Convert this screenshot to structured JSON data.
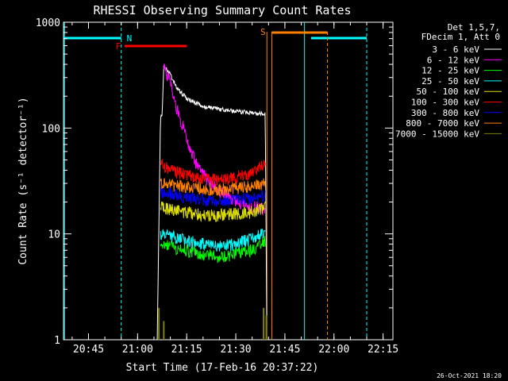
{
  "chart_data": {
    "type": "line",
    "title": "RHESSI Observing Summary Count Rates",
    "xlabel": "Start Time (17-Feb-16 20:37:22)",
    "ylabel": "Count Rate (s⁻¹ detector⁻¹)",
    "y_scale": "log",
    "ylim": [
      1,
      1000
    ],
    "xlim": [
      "20:37:22",
      "22:18:00"
    ],
    "x_ticks": [
      "20:45",
      "21:00",
      "21:15",
      "21:30",
      "21:45",
      "22:00",
      "22:15"
    ],
    "y_ticks": [
      "1",
      "10",
      "100",
      "1000"
    ],
    "legend": {
      "position": "top-right",
      "header": [
        "Det 1,5,7,",
        "FDecim 1, Att 0"
      ],
      "entries": [
        {
          "label": "3 - 6 keV",
          "color": "#ffffff"
        },
        {
          "label": "6 - 12 keV",
          "color": "#ff00ff"
        },
        {
          "label": "12 - 25 keV",
          "color": "#00ff00"
        },
        {
          "label": "25 - 50 keV",
          "color": "#00ffff"
        },
        {
          "label": "50 - 100 keV",
          "color": "#dddd00"
        },
        {
          "label": "100 - 300 keV",
          "color": "#ff0000"
        },
        {
          "label": "300 - 800 keV",
          "color": "#0000ff"
        },
        {
          "label": "800 - 7000 keV",
          "color": "#ff8000"
        },
        {
          "label": "7000 - 15000 keV",
          "color": "#808000"
        }
      ]
    },
    "series": [
      {
        "name": "3 - 6 keV",
        "color": "#ffffff",
        "x": [
          "21:06",
          "21:07",
          "21:07:30",
          "21:08",
          "21:10",
          "21:12",
          "21:15",
          "21:20",
          "21:25",
          "21:30",
          "21:34",
          "21:39",
          "21:39:30"
        ],
        "y": [
          1,
          130,
          130,
          390,
          320,
          240,
          190,
          160,
          150,
          145,
          140,
          135,
          1
        ]
      },
      {
        "name": "6 - 12 keV",
        "color": "#ff00ff",
        "x": [
          "21:08",
          "21:10",
          "21:12",
          "21:15",
          "21:18",
          "21:22",
          "21:25",
          "21:30",
          "21:35",
          "21:39"
        ],
        "y": [
          370,
          280,
          150,
          80,
          45,
          30,
          25,
          20,
          18,
          17
        ]
      },
      {
        "name": "12 - 25 keV",
        "color": "#00ff00",
        "x": [
          "21:07",
          "21:10",
          "21:15",
          "21:20",
          "21:25",
          "21:30",
          "21:35",
          "21:39"
        ],
        "y": [
          8,
          7.5,
          7,
          6.5,
          6,
          6.5,
          7,
          8.5
        ]
      },
      {
        "name": "25 - 50 keV",
        "color": "#00ffff",
        "x": [
          "21:07",
          "21:10",
          "21:15",
          "21:20",
          "21:25",
          "21:30",
          "21:35",
          "21:39"
        ],
        "y": [
          10,
          9.5,
          8.5,
          8,
          7.5,
          8,
          9,
          10.5
        ]
      },
      {
        "name": "50 - 100 keV",
        "color": "#dddd00",
        "x": [
          "21:07",
          "21:10",
          "21:15",
          "21:20",
          "21:25",
          "21:30",
          "21:35",
          "21:39"
        ],
        "y": [
          18,
          17,
          16,
          15,
          15,
          15.5,
          16,
          18
        ]
      },
      {
        "name": "100 - 300 keV",
        "color": "#ff0000",
        "x": [
          "21:07",
          "21:10",
          "21:15",
          "21:20",
          "21:25",
          "21:30",
          "21:35",
          "21:39"
        ],
        "y": [
          45,
          40,
          36,
          33,
          32,
          34,
          38,
          45
        ]
      },
      {
        "name": "300 - 800 keV",
        "color": "#0000ff",
        "x": [
          "21:07",
          "21:10",
          "21:15",
          "21:20",
          "21:25",
          "21:30",
          "21:35",
          "21:39"
        ],
        "y": [
          25,
          24,
          22,
          21,
          20,
          21,
          22,
          23
        ]
      },
      {
        "name": "800 - 7000 keV",
        "color": "#ff8000",
        "x": [
          "21:07",
          "21:10",
          "21:15",
          "21:20",
          "21:25",
          "21:30",
          "21:35",
          "21:39"
        ],
        "y": [
          30,
          29,
          28,
          27,
          26,
          27,
          28,
          30
        ]
      }
    ],
    "annotations": [
      {
        "label": "N",
        "color": "#00ffff"
      },
      {
        "label": "F",
        "color": "#ff0000"
      },
      {
        "label": "S",
        "color": "#ff8000"
      }
    ],
    "footer_date": "26-Oct-2021 18:20"
  }
}
